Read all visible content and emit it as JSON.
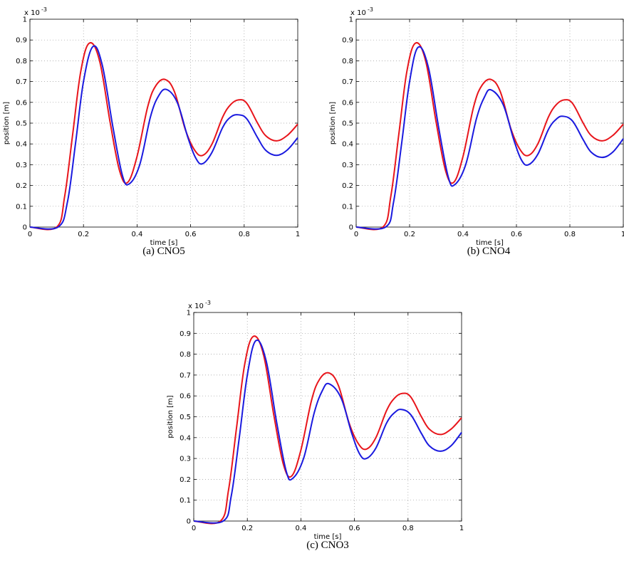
{
  "colors": {
    "series_red": "#e8151b",
    "series_blue": "#1a1adf",
    "grid": "#9a9a9a"
  },
  "chart_data": [
    {
      "type": "line",
      "caption": "(a)  CNO5",
      "xlabel": "time [s]",
      "ylabel": "position [m]",
      "exponent_label": "x 10",
      "exponent_power": "-3",
      "xlim": [
        0,
        1
      ],
      "ylim": [
        0,
        1
      ],
      "ylim_scale": 0.001,
      "xticks": [
        "0",
        "0.2",
        "0.4",
        "0.6",
        "0.8",
        "1"
      ],
      "yticks": [
        "0",
        "0.1",
        "0.2",
        "0.3",
        "0.4",
        "0.5",
        "0.6",
        "0.7",
        "0.8",
        "0.9",
        "1"
      ],
      "grid": true,
      "series": [
        {
          "color": "red",
          "x": [
            0,
            0.1,
            0.13,
            0.16,
            0.19,
            0.222,
            0.26,
            0.3,
            0.335,
            0.365,
            0.4,
            0.44,
            0.47,
            0.505,
            0.54,
            0.58,
            0.615,
            0.645,
            0.68,
            0.72,
            0.75,
            0.78,
            0.81,
            0.85,
            0.88,
            0.92,
            0.96,
            1.0
          ],
          "values": [
            0,
            0,
            0.15,
            0.45,
            0.75,
            0.885,
            0.8,
            0.5,
            0.27,
            0.215,
            0.34,
            0.58,
            0.68,
            0.71,
            0.65,
            0.47,
            0.37,
            0.345,
            0.4,
            0.53,
            0.59,
            0.612,
            0.595,
            0.5,
            0.44,
            0.415,
            0.44,
            0.495
          ]
        },
        {
          "color": "blue",
          "x": [
            0,
            0.105,
            0.14,
            0.17,
            0.2,
            0.235,
            0.27,
            0.31,
            0.345,
            0.37,
            0.41,
            0.45,
            0.48,
            0.51,
            0.55,
            0.59,
            0.62,
            0.645,
            0.68,
            0.72,
            0.75,
            0.78,
            0.81,
            0.85,
            0.88,
            0.92,
            0.96,
            1.0
          ],
          "values": [
            0,
            0,
            0.12,
            0.4,
            0.7,
            0.868,
            0.78,
            0.48,
            0.25,
            0.207,
            0.3,
            0.53,
            0.63,
            0.662,
            0.6,
            0.43,
            0.33,
            0.305,
            0.36,
            0.48,
            0.53,
            0.54,
            0.52,
            0.43,
            0.37,
            0.345,
            0.37,
            0.43
          ]
        }
      ]
    },
    {
      "type": "line",
      "caption": "(b)  CNO4",
      "xlabel": "time [s]",
      "ylabel": "position [m]",
      "exponent_label": "x 10",
      "exponent_power": "-3",
      "xlim": [
        0,
        1
      ],
      "ylim": [
        0,
        1
      ],
      "ylim_scale": 0.001,
      "xticks": [
        "0",
        "0.2",
        "0.4",
        "0.6",
        "0.8",
        "1"
      ],
      "yticks": [
        "0",
        "0.1",
        "0.2",
        "0.3",
        "0.4",
        "0.5",
        "0.6",
        "0.7",
        "0.8",
        "0.9",
        "1"
      ],
      "grid": true,
      "series": [
        {
          "color": "red",
          "x": [
            0,
            0.1,
            0.13,
            0.16,
            0.19,
            0.222,
            0.26,
            0.3,
            0.335,
            0.365,
            0.4,
            0.44,
            0.47,
            0.505,
            0.54,
            0.58,
            0.615,
            0.645,
            0.68,
            0.72,
            0.75,
            0.78,
            0.81,
            0.85,
            0.88,
            0.92,
            0.96,
            1.0
          ],
          "values": [
            0,
            0,
            0.15,
            0.45,
            0.75,
            0.885,
            0.8,
            0.5,
            0.27,
            0.215,
            0.34,
            0.58,
            0.68,
            0.71,
            0.65,
            0.47,
            0.37,
            0.345,
            0.4,
            0.53,
            0.59,
            0.612,
            0.595,
            0.5,
            0.44,
            0.415,
            0.44,
            0.495
          ]
        },
        {
          "color": "blue",
          "x": [
            0,
            0.11,
            0.14,
            0.17,
            0.2,
            0.232,
            0.27,
            0.31,
            0.345,
            0.368,
            0.41,
            0.45,
            0.48,
            0.505,
            0.55,
            0.59,
            0.62,
            0.645,
            0.68,
            0.72,
            0.75,
            0.775,
            0.81,
            0.85,
            0.88,
            0.92,
            0.96,
            1.0
          ],
          "values": [
            0,
            0,
            0.12,
            0.4,
            0.7,
            0.865,
            0.77,
            0.47,
            0.24,
            0.203,
            0.3,
            0.52,
            0.625,
            0.66,
            0.59,
            0.42,
            0.32,
            0.3,
            0.35,
            0.47,
            0.52,
            0.533,
            0.51,
            0.42,
            0.36,
            0.335,
            0.36,
            0.425
          ]
        }
      ]
    },
    {
      "type": "line",
      "caption": "(c)  CNO3",
      "xlabel": "time [s]",
      "ylabel": "position [m]",
      "exponent_label": "x 10",
      "exponent_power": "-3",
      "xlim": [
        0,
        1
      ],
      "ylim": [
        0,
        1
      ],
      "ylim_scale": 0.001,
      "xticks": [
        "0",
        "0.2",
        "0.4",
        "0.6",
        "0.8",
        "1"
      ],
      "yticks": [
        "0",
        "0.1",
        "0.2",
        "0.3",
        "0.4",
        "0.5",
        "0.6",
        "0.7",
        "0.8",
        "0.9",
        "1"
      ],
      "grid": true,
      "series": [
        {
          "color": "red",
          "x": [
            0,
            0.1,
            0.13,
            0.16,
            0.19,
            0.222,
            0.26,
            0.3,
            0.335,
            0.365,
            0.4,
            0.44,
            0.47,
            0.505,
            0.54,
            0.58,
            0.615,
            0.645,
            0.68,
            0.72,
            0.75,
            0.78,
            0.81,
            0.85,
            0.88,
            0.92,
            0.96,
            1.0
          ],
          "values": [
            0,
            0,
            0.15,
            0.45,
            0.75,
            0.885,
            0.8,
            0.5,
            0.27,
            0.215,
            0.34,
            0.58,
            0.68,
            0.71,
            0.65,
            0.47,
            0.37,
            0.345,
            0.4,
            0.53,
            0.59,
            0.612,
            0.595,
            0.5,
            0.44,
            0.415,
            0.44,
            0.495
          ]
        },
        {
          "color": "blue",
          "x": [
            0,
            0.11,
            0.14,
            0.17,
            0.2,
            0.232,
            0.27,
            0.31,
            0.345,
            0.368,
            0.41,
            0.45,
            0.48,
            0.505,
            0.55,
            0.59,
            0.62,
            0.645,
            0.68,
            0.72,
            0.75,
            0.775,
            0.81,
            0.85,
            0.88,
            0.92,
            0.96,
            1.0
          ],
          "values": [
            0,
            0,
            0.12,
            0.4,
            0.7,
            0.865,
            0.77,
            0.47,
            0.24,
            0.203,
            0.3,
            0.52,
            0.625,
            0.658,
            0.59,
            0.42,
            0.32,
            0.3,
            0.35,
            0.47,
            0.52,
            0.535,
            0.51,
            0.42,
            0.36,
            0.335,
            0.36,
            0.425
          ]
        }
      ]
    }
  ]
}
